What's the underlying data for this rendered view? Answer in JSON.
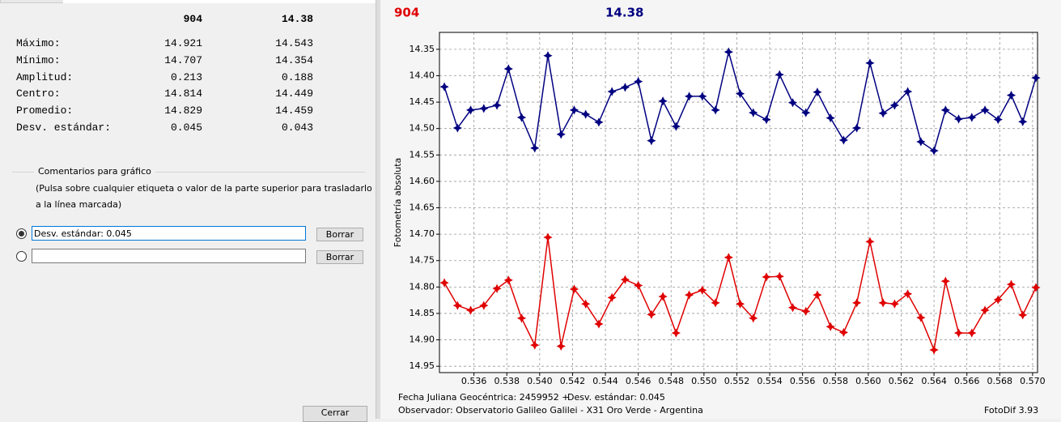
{
  "left_panel": {
    "header": [
      904,
      14.38
    ],
    "stats": [
      {
        "label": "Máximo:",
        "values": [
          14.921,
          14.543
        ]
      },
      {
        "label": "Mínimo:",
        "values": [
          14.707,
          14.354
        ]
      },
      {
        "label": "Amplitud:",
        "values": [
          0.213,
          0.188
        ]
      },
      {
        "label": "Centro:",
        "values": [
          14.814,
          14.449
        ]
      },
      {
        "label": "Promedio:",
        "values": [
          14.829,
          14.459
        ]
      },
      {
        "label": "Desv. estándar:",
        "values": [
          0.045,
          0.043
        ]
      }
    ],
    "comments": {
      "title": "Comentarios para gráfico",
      "hint": [
        "(Pulsa sobre cualquier etiqueta o valor de la parte superior para trasladarlo",
        "a la línea marcada)"
      ],
      "rows": [
        {
          "text": "Desv. estándar: 0.045",
          "selected": true,
          "button": "Borrar"
        },
        {
          "selected": false,
          "button": "Borrar"
        }
      ]
    },
    "close_button": "Cerrar"
  },
  "chart_data": {
    "type": "line",
    "y_label": "Fotometría absoluta",
    "x": [
      0.5342,
      0.535,
      0.5358,
      0.5366,
      0.5374,
      0.5381,
      0.5389,
      0.5397,
      0.5405,
      0.5413,
      0.5421,
      0.5428,
      0.5436,
      0.5444,
      0.5452,
      0.546,
      0.5468,
      0.5475,
      0.5483,
      0.5491,
      0.5499,
      0.5507,
      0.5515,
      0.5522,
      0.553,
      0.5538,
      0.5546,
      0.5554,
      0.5562,
      0.5569,
      0.5577,
      0.5585,
      0.5593,
      0.5601,
      0.5609,
      0.5616,
      0.5624,
      0.5632,
      0.564,
      0.5647,
      0.5655,
      0.5663,
      0.5671,
      0.5679,
      0.5687,
      0.5694,
      0.5702
    ],
    "series": [
      {
        "name": "14.38",
        "color": "#000080",
        "values": [
          14.421,
          14.499,
          14.465,
          14.462,
          14.456,
          14.387,
          14.479,
          14.537,
          14.362,
          14.511,
          14.465,
          14.473,
          14.488,
          14.43,
          14.422,
          14.411,
          14.523,
          14.448,
          14.496,
          14.439,
          14.439,
          14.465,
          14.355,
          14.434,
          14.47,
          14.483,
          14.398,
          14.451,
          14.47,
          14.431,
          14.48,
          14.522,
          14.499,
          14.376,
          14.471,
          14.456,
          14.43,
          14.525,
          14.542,
          14.465,
          14.482,
          14.479,
          14.465,
          14.483,
          14.437,
          14.487,
          14.404
        ]
      },
      {
        "name": "904",
        "color": "#e00000",
        "values": [
          14.792,
          14.835,
          14.844,
          14.835,
          14.803,
          14.787,
          14.859,
          14.91,
          14.706,
          14.912,
          14.804,
          14.832,
          14.87,
          14.82,
          14.786,
          14.797,
          14.852,
          14.818,
          14.887,
          14.815,
          14.806,
          14.83,
          14.744,
          14.832,
          14.859,
          14.781,
          14.78,
          14.839,
          14.846,
          14.815,
          14.875,
          14.886,
          14.83,
          14.714,
          14.83,
          14.832,
          14.813,
          14.858,
          14.919,
          14.789,
          14.887,
          14.887,
          14.844,
          14.824,
          14.795,
          14.853,
          14.801
        ]
      }
    ],
    "xlim": [
      0.5339,
      0.5703
    ],
    "ylim": [
      14.318,
      14.962
    ],
    "y_inverted": true,
    "xticks": [
      0.536,
      0.538,
      0.54,
      0.542,
      0.544,
      0.546,
      0.548,
      0.55,
      0.552,
      0.554,
      0.556,
      0.558,
      0.56,
      0.562,
      0.564,
      0.566,
      0.568,
      0.57
    ],
    "xtick_labels": [
      "0.536",
      "0.538",
      "0.540",
      "0.542",
      "0.544",
      "0.546",
      "0.548",
      "0.550",
      "0.552",
      "0.554",
      "0.556",
      "0.558",
      "0.560",
      "0.562",
      "0.564",
      "0.566",
      "0.568",
      "0.570"
    ],
    "yticks": [
      14.35,
      {
        "value": 14.4,
        "label": "14.40"
      },
      14.45,
      {
        "value": 14.5,
        "label": "14.50"
      },
      14.55,
      {
        "value": 14.6,
        "label": "14.60"
      },
      14.65,
      {
        "value": 14.7,
        "label": "14.70"
      },
      14.75,
      {
        "value": 14.8,
        "label": "14.80"
      },
      14.85,
      {
        "value": 14.9,
        "label": "14.90"
      },
      14.95
    ],
    "grid": true,
    "footer": {
      "date_label": "Fecha Juliana Geocéntrica: 2459952 +",
      "stdev": "Desv. estándar: 0.045",
      "observer": "Observador: Observatorio Galileo Galilei - X31 Oro Verde - Argentina",
      "software": "FotoDif 3.93"
    }
  }
}
